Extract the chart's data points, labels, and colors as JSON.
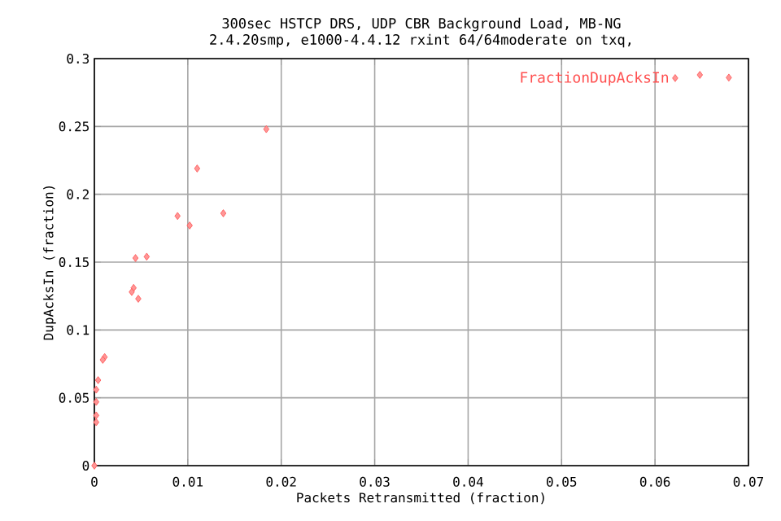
{
  "chart_data": {
    "type": "scatter",
    "title": "300sec HSTCP DRS, UDP CBR Background Load, MB-NG",
    "subtitle": "2.4.20smp, e1000-4.4.12 rxint 64/64moderate on txq,",
    "xlabel": "Packets Retransmitted (fraction)",
    "ylabel": "DupAcksIn (fraction)",
    "series": [
      {
        "name": "FractionDupAcksIn",
        "color": "#ff5050",
        "x": [
          0.0648,
          0.0679,
          0.0184,
          0.011,
          0.0089,
          0.0102,
          0.0138,
          0.0044,
          0.0056,
          0.0042,
          0.004,
          0.0047,
          0.0011,
          0.0009,
          0.0004,
          0.0002,
          0.0002,
          0.0002,
          0.0002,
          0
        ],
        "values": [
          0.288,
          0.286,
          0.248,
          0.219,
          0.184,
          0.177,
          0.186,
          0.153,
          0.154,
          0.131,
          0.128,
          0.123,
          0.08,
          0.078,
          0.063,
          0.056,
          0.047,
          0.037,
          0.032,
          0
        ]
      }
    ],
    "xlim": [
      0,
      0.07
    ],
    "xticks": [
      0,
      0.01,
      0.02,
      0.03,
      0.04,
      0.05,
      0.06,
      0.07
    ],
    "ylim": [
      0,
      0.3
    ],
    "yticks": [
      0,
      0.05,
      0.1,
      0.15,
      0.2,
      0.25,
      0.3
    ],
    "grid": true,
    "legend": "top right",
    "marker": "diamond"
  }
}
